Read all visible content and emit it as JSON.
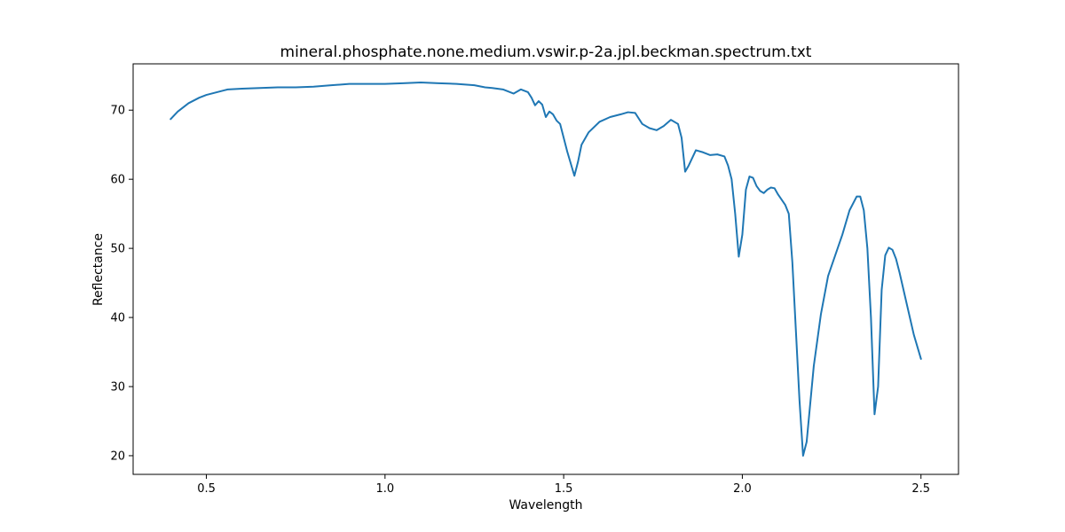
{
  "chart_data": {
    "type": "line",
    "title": "mineral.phosphate.none.medium.vswir.p-2a.jpl.beckman.spectrum.txt",
    "xlabel": "Wavelength",
    "ylabel": "Reflectance",
    "xlim": [
      0.295,
      2.605
    ],
    "ylim": [
      17.3,
      76.7
    ],
    "xticks": [
      0.5,
      1.0,
      1.5,
      2.0,
      2.5
    ],
    "xtick_labels": [
      "0.5",
      "1.0",
      "1.5",
      "2.0",
      "2.5"
    ],
    "yticks": [
      20,
      30,
      40,
      50,
      60,
      70
    ],
    "ytick_labels": [
      "20",
      "30",
      "40",
      "50",
      "60",
      "70"
    ],
    "grid": false,
    "series": [
      {
        "color": "#1f77b4",
        "x": [
          0.4,
          0.42,
          0.45,
          0.48,
          0.5,
          0.53,
          0.56,
          0.6,
          0.65,
          0.7,
          0.75,
          0.8,
          0.85,
          0.9,
          1.0,
          1.05,
          1.1,
          1.15,
          1.2,
          1.25,
          1.28,
          1.3,
          1.33,
          1.36,
          1.38,
          1.4,
          1.41,
          1.42,
          1.43,
          1.44,
          1.45,
          1.46,
          1.47,
          1.48,
          1.49,
          1.5,
          1.51,
          1.53,
          1.54,
          1.55,
          1.57,
          1.6,
          1.63,
          1.66,
          1.68,
          1.7,
          1.72,
          1.74,
          1.76,
          1.78,
          1.8,
          1.82,
          1.83,
          1.84,
          1.85,
          1.87,
          1.89,
          1.91,
          1.93,
          1.95,
          1.96,
          1.97,
          1.98,
          1.99,
          2.0,
          2.01,
          2.02,
          2.03,
          2.04,
          2.05,
          2.06,
          2.07,
          2.08,
          2.09,
          2.1,
          2.12,
          2.13,
          2.14,
          2.15,
          2.16,
          2.17,
          2.18,
          2.2,
          2.22,
          2.24,
          2.26,
          2.28,
          2.3,
          2.32,
          2.33,
          2.34,
          2.35,
          2.36,
          2.37,
          2.38,
          2.39,
          2.4,
          2.41,
          2.42,
          2.43,
          2.44,
          2.46,
          2.48,
          2.5
        ],
        "y": [
          68.7,
          69.8,
          71.0,
          71.8,
          72.2,
          72.6,
          73.0,
          73.1,
          73.2,
          73.3,
          73.3,
          73.4,
          73.6,
          73.8,
          73.8,
          73.9,
          74.0,
          73.9,
          73.8,
          73.6,
          73.3,
          73.2,
          73.0,
          72.4,
          73.0,
          72.6,
          71.8,
          70.7,
          71.3,
          70.8,
          69.0,
          69.8,
          69.4,
          68.5,
          68.0,
          66.0,
          64.0,
          60.5,
          62.5,
          65.0,
          66.8,
          68.3,
          69.0,
          69.4,
          69.7,
          69.6,
          68.0,
          67.4,
          67.1,
          67.7,
          68.6,
          68.0,
          66.0,
          61.1,
          62.0,
          64.2,
          63.9,
          63.5,
          63.6,
          63.3,
          62.0,
          60.0,
          55.0,
          48.8,
          52.0,
          58.5,
          60.4,
          60.2,
          59.0,
          58.3,
          58.0,
          58.5,
          58.8,
          58.7,
          57.8,
          56.3,
          55.0,
          48.0,
          38.0,
          28.0,
          20.0,
          22.0,
          33.0,
          40.5,
          46.0,
          49.0,
          52.0,
          55.5,
          57.5,
          57.5,
          55.5,
          50.0,
          40.0,
          26.0,
          30.0,
          44.0,
          49.0,
          50.1,
          49.8,
          48.5,
          46.5,
          42.0,
          37.5,
          34.0
        ]
      }
    ]
  }
}
